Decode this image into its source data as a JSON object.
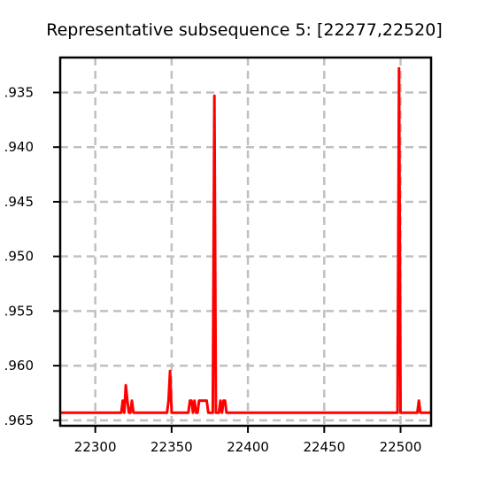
{
  "chart_data": {
    "type": "line",
    "title": "Representative subsequence 5: [22277,22520]",
    "xlabel": "",
    "ylabel": "",
    "xlim": [
      22277,
      22520
    ],
    "ylim": [
      -0.9655,
      -0.9318
    ],
    "grid": true,
    "line_color": "#ff0000",
    "grid_color": "#c0c0c0",
    "x_ticks": [
      22300,
      22350,
      22400,
      22450,
      22500
    ],
    "x_tick_labels": [
      "22300",
      "22350",
      "22400",
      "22450",
      "22500"
    ],
    "y_ticks": [
      -0.935,
      -0.94,
      -0.945,
      -0.95,
      -0.955,
      -0.96,
      -0.965
    ],
    "y_tick_labels": [
      ".935",
      ".940",
      ".945",
      ".950",
      ".955",
      ".960",
      ".965"
    ],
    "series": [
      {
        "x": [
          22277,
          22317,
          22318,
          22319,
          22320,
          22321,
          22322,
          22323,
          22324,
          22325,
          22326,
          22327,
          22347,
          22348,
          22349,
          22350,
          22361,
          22362,
          22363,
          22364,
          22365,
          22366,
          22367,
          22368,
          22369,
          22370,
          22371,
          22372,
          22373,
          22374,
          22375,
          22376,
          22377,
          22378,
          22379,
          22380,
          22381,
          22382,
          22383,
          22384,
          22385,
          22386,
          22387,
          22388,
          22497,
          22498,
          22499,
          22500,
          22511,
          22512,
          22513,
          22520
        ],
        "y": [
          -0.9643,
          -0.9643,
          -0.9632,
          -0.9643,
          -0.9618,
          -0.9632,
          -0.9643,
          -0.9643,
          -0.9632,
          -0.9643,
          -0.9643,
          -0.9643,
          -0.9643,
          -0.9632,
          -0.9605,
          -0.9643,
          -0.9643,
          -0.9632,
          -0.9632,
          -0.9643,
          -0.9632,
          -0.9643,
          -0.9643,
          -0.9632,
          -0.9632,
          -0.9632,
          -0.9632,
          -0.9632,
          -0.9632,
          -0.9643,
          -0.9643,
          -0.9643,
          -0.9643,
          -0.9353,
          -0.9643,
          -0.9643,
          -0.9643,
          -0.9632,
          -0.9643,
          -0.9632,
          -0.9632,
          -0.9643,
          -0.9643,
          -0.9643,
          -0.9643,
          -0.9643,
          -0.9328,
          -0.9643,
          -0.9643,
          -0.9632,
          -0.9643,
          -0.9643
        ]
      }
    ]
  }
}
